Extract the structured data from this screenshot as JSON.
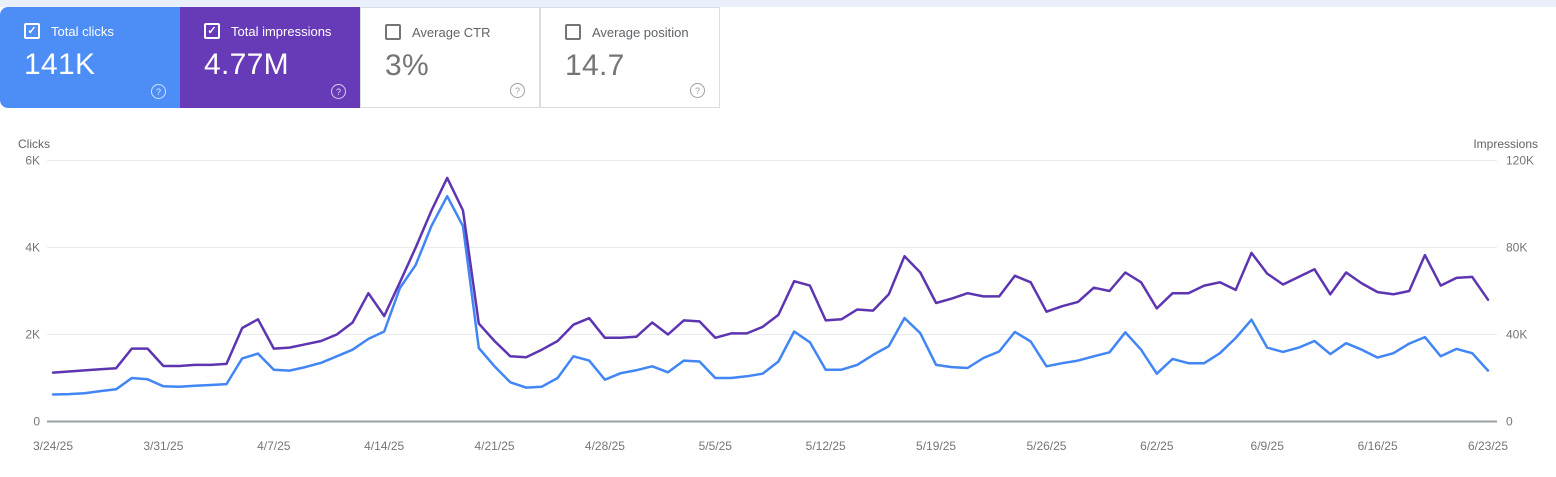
{
  "ui": {
    "check_glyph": "✓",
    "help_glyph": "?"
  },
  "colors": {
    "top_strip": "#e9effb",
    "card_border": "#dadce0",
    "grid": "#e8eaed",
    "axis_line": "#9aa0a6",
    "tick_text": "#757575",
    "axis_title": "#5f6368"
  },
  "cards": [
    {
      "label": "Total clicks",
      "value": "141K",
      "checked": true,
      "bg": "#4c8df6"
    },
    {
      "label": "Total impressions",
      "value": "4.77M",
      "checked": true,
      "bg": "#673ab7"
    },
    {
      "label": "Average CTR",
      "value": "3%",
      "checked": false,
      "bg": "#ffffff"
    },
    {
      "label": "Average position",
      "value": "14.7",
      "checked": false,
      "bg": "#ffffff"
    }
  ],
  "chart_data": {
    "type": "line",
    "grid": true,
    "left_axis": {
      "title": "Clicks",
      "ticks": [
        "0",
        "2K",
        "4K",
        "6K"
      ],
      "max": 6000
    },
    "right_axis": {
      "title": "Impressions",
      "ticks": [
        "0",
        "40K",
        "80K",
        "120K"
      ],
      "max": 120000
    },
    "x_tick_labels": [
      "3/24/25",
      "3/31/25",
      "4/7/25",
      "4/14/25",
      "4/21/25",
      "4/28/25",
      "5/5/25",
      "5/12/25",
      "5/19/25",
      "5/26/25",
      "6/2/25",
      "6/9/25",
      "6/16/25",
      "6/23/25"
    ],
    "x_tick_day_indices": [
      0,
      7,
      14,
      21,
      28,
      35,
      42,
      49,
      56,
      63,
      70,
      77,
      84,
      91
    ],
    "x_start_date": "3/24/25",
    "x_end_date": "6/23/25",
    "series": [
      {
        "name": "Total clicks",
        "axis": "left",
        "color": "#4285f4",
        "values": [
          620,
          630,
          650,
          700,
          740,
          1000,
          970,
          810,
          800,
          820,
          840,
          860,
          1450,
          1560,
          1190,
          1170,
          1250,
          1350,
          1500,
          1650,
          1900,
          2070,
          3070,
          3600,
          4500,
          5180,
          4490,
          1690,
          1270,
          900,
          780,
          800,
          1000,
          1500,
          1400,
          960,
          1110,
          1180,
          1270,
          1130,
          1400,
          1380,
          1000,
          1000,
          1040,
          1100,
          1380,
          2070,
          1820,
          1190,
          1190,
          1300,
          1530,
          1730,
          2380,
          2030,
          1300,
          1250,
          1230,
          1460,
          1610,
          2060,
          1840,
          1270,
          1340,
          1400,
          1500,
          1590,
          2050,
          1650,
          1100,
          1440,
          1340,
          1340,
          1570,
          1920,
          2340,
          1700,
          1600,
          1700,
          1850,
          1550,
          1800,
          1650,
          1470,
          1570,
          1790,
          1940,
          1500,
          1670,
          1570,
          1170
        ]
      },
      {
        "name": "Total impressions",
        "axis": "right",
        "color": "#5e35b1",
        "values": [
          22500,
          23000,
          23500,
          24000,
          24500,
          33500,
          33500,
          25500,
          25500,
          26000,
          26000,
          26500,
          43000,
          47000,
          33500,
          34000,
          35500,
          37000,
          40000,
          45500,
          59000,
          48500,
          64000,
          80000,
          97000,
          112000,
          97000,
          45000,
          37000,
          30000,
          29500,
          33000,
          37000,
          44500,
          47500,
          38500,
          38500,
          39000,
          45500,
          40000,
          46500,
          46000,
          38500,
          40500,
          40500,
          43500,
          49000,
          64500,
          62500,
          46500,
          47000,
          51500,
          51000,
          58500,
          76000,
          68500,
          54500,
          56500,
          59000,
          57500,
          57500,
          67000,
          64000,
          50500,
          53000,
          55000,
          61500,
          60000,
          68500,
          64000,
          52000,
          59000,
          59000,
          62500,
          64000,
          60500,
          77500,
          68000,
          63000,
          66500,
          70000,
          58500,
          68500,
          63500,
          59500,
          58500,
          60000,
          76500,
          62500,
          66000,
          66500,
          56000
        ]
      }
    ]
  }
}
